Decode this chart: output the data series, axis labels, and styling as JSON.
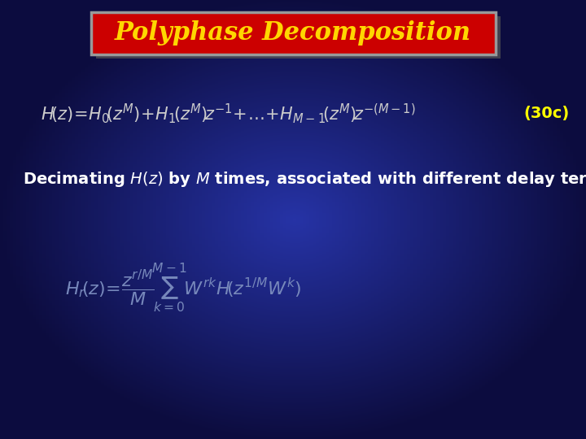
{
  "title": "Polyphase Decomposition",
  "title_color": "#FFD700",
  "title_bg_color": "#CC0000",
  "bg_color_center": "#1a3aaa",
  "bg_color_edge": "#000055",
  "eq1_color": "#CCCCCC",
  "label_30c": "(30c)",
  "label_30c_color": "#FFFF00",
  "desc_color": "#FFFFFF",
  "eq2_color": "#7788BB",
  "eq1_fontsize": 15,
  "eq2_fontsize": 15,
  "desc_fontsize": 14,
  "title_fontsize": 22
}
